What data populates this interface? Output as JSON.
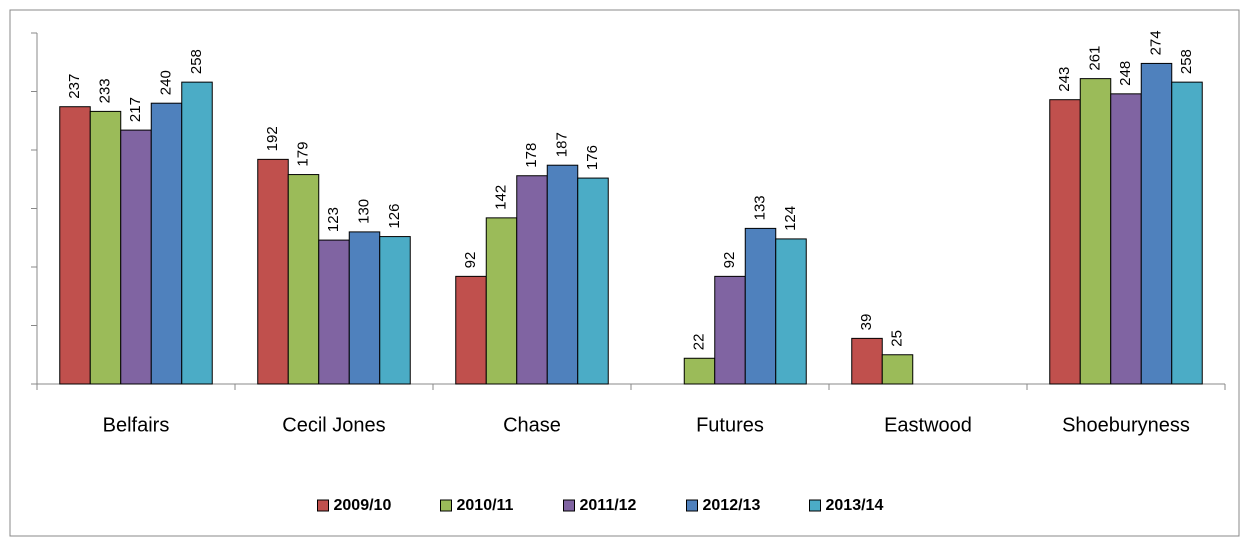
{
  "chart_data": {
    "type": "bar",
    "categories": [
      "Belfairs",
      "Cecil Jones",
      "Chase",
      "Futures",
      "Eastwood",
      "Shoeburyness"
    ],
    "series": [
      {
        "name": "2009/10",
        "color": "#c0504d",
        "values": [
          237,
          192,
          92,
          null,
          39,
          243
        ]
      },
      {
        "name": "2010/11",
        "color": "#9bbb59",
        "values": [
          233,
          179,
          142,
          22,
          25,
          261
        ]
      },
      {
        "name": "2011/12",
        "color": "#8064a2",
        "values": [
          217,
          123,
          178,
          92,
          null,
          248
        ]
      },
      {
        "name": "2012/13",
        "color": "#4f81bd",
        "values": [
          240,
          130,
          187,
          133,
          null,
          274
        ]
      },
      {
        "name": "2013/14",
        "color": "#4bacc6",
        "values": [
          258,
          126,
          176,
          124,
          null,
          258
        ]
      }
    ],
    "ylim": [
      0,
      300
    ],
    "yticks": [
      0,
      50,
      100,
      150,
      200,
      250,
      300
    ],
    "legend": "bottom"
  }
}
